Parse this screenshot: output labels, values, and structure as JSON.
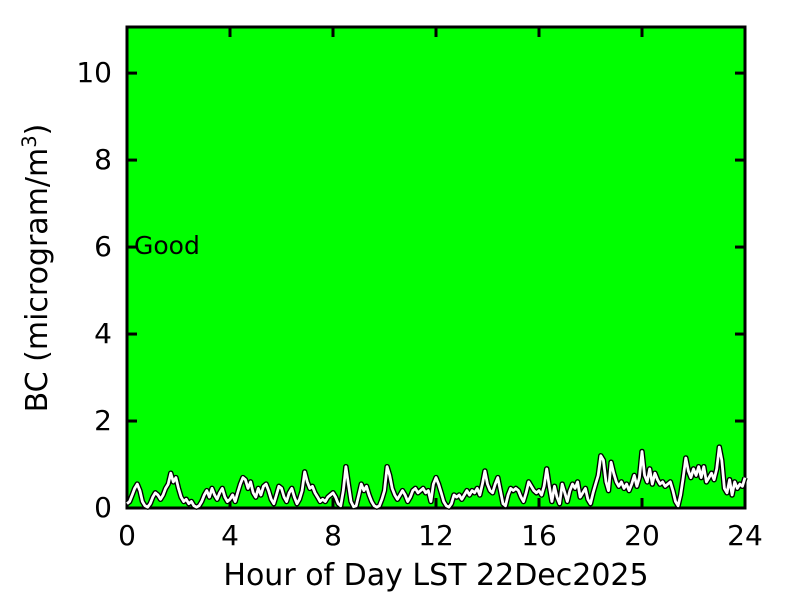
{
  "chart": {
    "annotation": "Good",
    "xlabel": "Hour of Day LST 22Dec2025",
    "ylabel_prefix": "BC (microgram/m",
    "ylabel_sup": "3",
    "ylabel_suffix": ")"
  },
  "chart_data": {
    "type": "line",
    "title": "",
    "xlabel": "Hour of Day LST 22Dec2025",
    "ylabel": "BC (microgram/m^3)",
    "xlim": [
      0,
      24
    ],
    "ylim": [
      0,
      11.06
    ],
    "x_ticks": [
      0,
      4,
      8,
      12,
      16,
      20,
      24
    ],
    "y_ticks": [
      0,
      2,
      4,
      6,
      8,
      10
    ],
    "grid": false,
    "legend_position": "none",
    "annotations": [
      {
        "text": "Good",
        "x": 0.3,
        "y": 6
      }
    ],
    "colors": {
      "plot_background": "#00ff00",
      "line": "#ffffff",
      "line_outline": "#000000",
      "frame": "#000000",
      "text": "#000000"
    },
    "series": [
      {
        "name": "BC",
        "x_start": 0,
        "x_step": 0.1,
        "values": [
          0.1,
          0.15,
          0.3,
          0.45,
          0.55,
          0.4,
          0.15,
          0.05,
          0.02,
          0.1,
          0.25,
          0.35,
          0.3,
          0.2,
          0.3,
          0.45,
          0.55,
          0.8,
          0.6,
          0.7,
          0.45,
          0.25,
          0.15,
          0.2,
          0.1,
          0.15,
          0.05,
          0.02,
          0.05,
          0.15,
          0.3,
          0.4,
          0.25,
          0.45,
          0.3,
          0.2,
          0.35,
          0.45,
          0.25,
          0.15,
          0.2,
          0.3,
          0.15,
          0.35,
          0.55,
          0.7,
          0.65,
          0.45,
          0.6,
          0.35,
          0.25,
          0.45,
          0.3,
          0.5,
          0.55,
          0.4,
          0.2,
          0.1,
          0.3,
          0.5,
          0.45,
          0.25,
          0.15,
          0.35,
          0.45,
          0.25,
          0.1,
          0.2,
          0.4,
          0.83,
          0.6,
          0.45,
          0.5,
          0.35,
          0.25,
          0.15,
          0.2,
          0.15,
          0.25,
          0.3,
          0.35,
          0.25,
          0.1,
          0.05,
          0.4,
          0.95,
          0.55,
          0.15,
          0.03,
          0.05,
          0.3,
          0.55,
          0.4,
          0.5,
          0.3,
          0.15,
          0.05,
          0.02,
          0.05,
          0.2,
          0.4,
          0.95,
          0.75,
          0.45,
          0.3,
          0.2,
          0.3,
          0.4,
          0.3,
          0.15,
          0.25,
          0.4,
          0.45,
          0.35,
          0.4,
          0.45,
          0.35,
          0.4,
          0.15,
          0.55,
          0.7,
          0.55,
          0.35,
          0.15,
          0.05,
          0.02,
          0.1,
          0.3,
          0.25,
          0.3,
          0.2,
          0.3,
          0.4,
          0.3,
          0.4,
          0.35,
          0.45,
          0.3,
          0.55,
          0.85,
          0.55,
          0.4,
          0.35,
          0.55,
          0.7,
          0.4,
          0.1,
          0.05,
          0.3,
          0.45,
          0.4,
          0.45,
          0.4,
          0.25,
          0.15,
          0.35,
          0.6,
          0.5,
          0.4,
          0.35,
          0.4,
          0.3,
          0.5,
          0.9,
          0.5,
          0.15,
          0.5,
          0.25,
          0.1,
          0.55,
          0.35,
          0.15,
          0.4,
          0.55,
          0.45,
          0.6,
          0.25,
          0.35,
          0.45,
          0.2,
          0.1,
          0.35,
          0.55,
          0.75,
          1.2,
          1.1,
          0.6,
          0.4,
          1.05,
          0.8,
          0.6,
          0.5,
          0.6,
          0.45,
          0.55,
          0.4,
          0.55,
          0.75,
          0.5,
          0.7,
          1.3,
          0.75,
          0.6,
          0.9,
          0.55,
          0.8,
          0.65,
          0.55,
          0.6,
          0.5,
          0.55,
          0.6,
          0.4,
          0.15,
          0.05,
          0.3,
          0.7,
          1.15,
          0.85,
          0.7,
          0.9,
          0.75,
          0.95,
          0.7,
          0.95,
          0.6,
          0.7,
          0.8,
          0.65,
          0.9,
          1.4,
          1.1,
          0.45,
          0.35,
          0.65,
          0.3,
          0.6,
          0.45,
          0.55,
          0.5,
          0.7
        ]
      }
    ]
  }
}
